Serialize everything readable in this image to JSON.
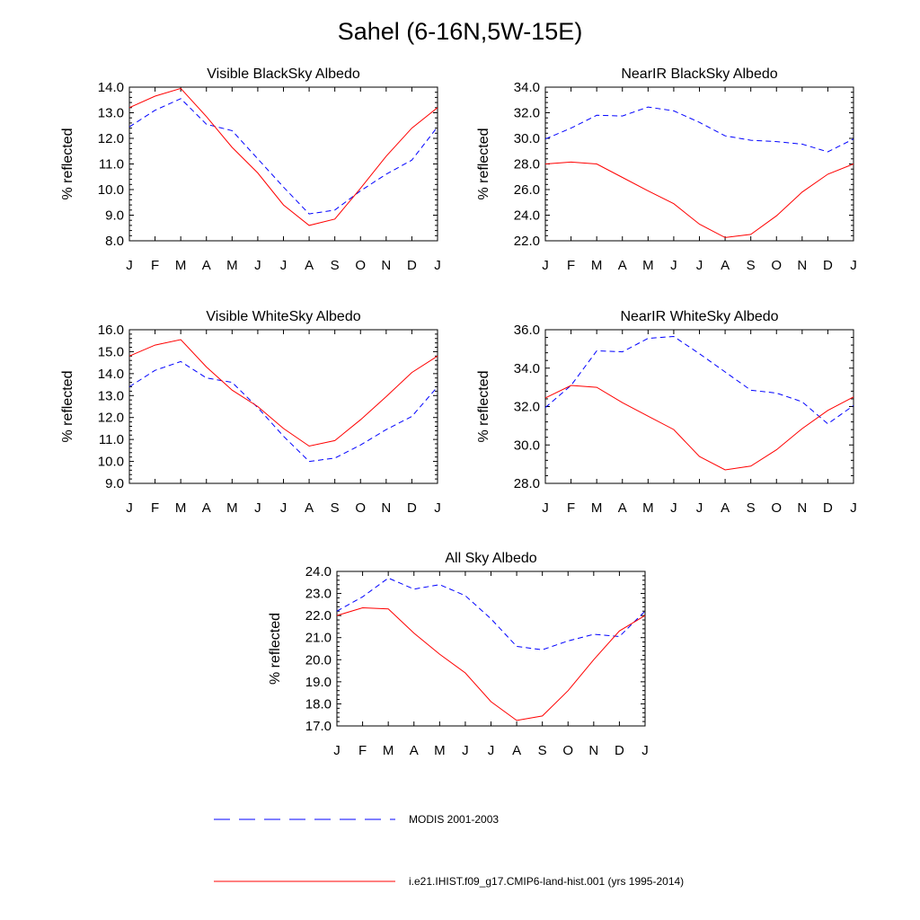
{
  "page_title": "Sahel (6-16N,5W-15E)",
  "series_styles": {
    "MODIS 2001-2003": {
      "color": "#0000ff",
      "dashed": true
    },
    "i.e21.IHIST.f09_g17.CMIP6-land-hist.001 (yrs 1995-2014)": {
      "color": "#ff0000",
      "dashed": false
    }
  },
  "legend": {
    "entries": [
      {
        "label": "MODIS 2001-2003",
        "color": "#0000ff",
        "dashed": true
      },
      {
        "label": "i.e21.IHIST.f09_g17.CMIP6-land-hist.001 (yrs 1995-2014)",
        "color": "#ff0000",
        "dashed": false
      }
    ]
  },
  "chart_data": [
    {
      "type": "line",
      "title": "Visible BlackSky Albedo",
      "ylabel": "% reflected",
      "xlabel": "",
      "categories": [
        "J",
        "F",
        "M",
        "A",
        "M",
        "J",
        "J",
        "A",
        "S",
        "O",
        "N",
        "D",
        "J"
      ],
      "ylim": [
        8.0,
        14.0
      ],
      "yticks": [
        "8.0",
        "9.0",
        "10.0",
        "11.0",
        "12.0",
        "13.0",
        "14.0"
      ],
      "series": [
        {
          "name": "MODIS 2001-2003",
          "values": [
            12.45,
            13.1,
            13.55,
            12.55,
            12.3,
            11.2,
            10.1,
            9.05,
            9.2,
            9.95,
            10.6,
            11.15,
            12.45
          ]
        },
        {
          "name": "i.e21.IHIST.f09_g17.CMIP6-land-hist.001 (yrs 1995-2014)",
          "values": [
            13.2,
            13.65,
            13.95,
            12.85,
            11.65,
            10.65,
            9.4,
            8.6,
            8.85,
            10.05,
            11.3,
            12.4,
            13.2
          ]
        }
      ]
    },
    {
      "type": "line",
      "title": "NearIR BlackSky Albedo",
      "ylabel": "% reflected",
      "xlabel": "",
      "categories": [
        "J",
        "F",
        "M",
        "A",
        "M",
        "J",
        "J",
        "A",
        "S",
        "O",
        "N",
        "D",
        "J"
      ],
      "ylim": [
        22.0,
        34.0
      ],
      "yticks": [
        "22.0",
        "24.0",
        "26.0",
        "28.0",
        "30.0",
        "32.0",
        "34.0"
      ],
      "series": [
        {
          "name": "MODIS 2001-2003",
          "values": [
            29.95,
            30.8,
            31.8,
            31.75,
            32.45,
            32.15,
            31.25,
            30.2,
            29.85,
            29.75,
            29.55,
            28.95,
            29.95
          ]
        },
        {
          "name": "i.e21.IHIST.f09_g17.CMIP6-land-hist.001 (yrs 1995-2014)",
          "values": [
            28.0,
            28.15,
            28.0,
            26.95,
            25.9,
            24.9,
            23.3,
            22.25,
            22.5,
            23.95,
            25.8,
            27.2,
            28.0
          ]
        }
      ]
    },
    {
      "type": "line",
      "title": "Visible WhiteSky Albedo",
      "ylabel": "% reflected",
      "xlabel": "",
      "categories": [
        "J",
        "F",
        "M",
        "A",
        "M",
        "J",
        "J",
        "A",
        "S",
        "O",
        "N",
        "D",
        "J"
      ],
      "ylim": [
        9.0,
        16.0
      ],
      "yticks": [
        "9.0",
        "10.0",
        "11.0",
        "12.0",
        "13.0",
        "14.0",
        "15.0",
        "16.0"
      ],
      "series": [
        {
          "name": "MODIS 2001-2003",
          "values": [
            13.4,
            14.15,
            14.55,
            13.8,
            13.6,
            12.45,
            11.15,
            10.0,
            10.15,
            10.75,
            11.45,
            12.05,
            13.4
          ]
        },
        {
          "name": "i.e21.IHIST.f09_g17.CMIP6-land-hist.001 (yrs 1995-2014)",
          "values": [
            14.8,
            15.3,
            15.55,
            14.3,
            13.25,
            12.5,
            11.5,
            10.7,
            10.95,
            11.9,
            12.95,
            14.05,
            14.8
          ]
        }
      ]
    },
    {
      "type": "line",
      "title": "NearIR WhiteSky Albedo",
      "ylabel": "% reflected",
      "xlabel": "",
      "categories": [
        "J",
        "F",
        "M",
        "A",
        "M",
        "J",
        "J",
        "A",
        "S",
        "O",
        "N",
        "D",
        "J"
      ],
      "ylim": [
        28.0,
        36.0
      ],
      "yticks": [
        "28.0",
        "30.0",
        "32.0",
        "34.0",
        "36.0"
      ],
      "series": [
        {
          "name": "MODIS 2001-2003",
          "values": [
            31.95,
            33.1,
            34.9,
            34.85,
            35.55,
            35.65,
            34.75,
            33.8,
            32.85,
            32.7,
            32.25,
            31.1,
            32.05
          ]
        },
        {
          "name": "i.e21.IHIST.f09_g17.CMIP6-land-hist.001 (yrs 1995-2014)",
          "values": [
            32.45,
            33.1,
            33.0,
            32.2,
            31.5,
            30.8,
            29.4,
            28.7,
            28.9,
            29.75,
            30.85,
            31.8,
            32.5
          ]
        }
      ]
    },
    {
      "type": "line",
      "title": "All Sky Albedo",
      "ylabel": "% reflected",
      "xlabel": "",
      "categories": [
        "J",
        "F",
        "M",
        "A",
        "M",
        "J",
        "J",
        "A",
        "S",
        "O",
        "N",
        "D",
        "J"
      ],
      "ylim": [
        17.0,
        24.0
      ],
      "yticks": [
        "17.0",
        "18.0",
        "19.0",
        "20.0",
        "21.0",
        "22.0",
        "23.0",
        "24.0"
      ],
      "series": [
        {
          "name": "MODIS 2001-2003",
          "values": [
            22.2,
            22.85,
            23.7,
            23.2,
            23.4,
            22.9,
            21.85,
            20.6,
            20.45,
            20.85,
            21.15,
            21.05,
            22.2
          ]
        },
        {
          "name": "i.e21.IHIST.f09_g17.CMIP6-land-hist.001 (yrs 1995-2014)",
          "values": [
            22.0,
            22.35,
            22.3,
            21.2,
            20.25,
            19.4,
            18.1,
            17.25,
            17.45,
            18.6,
            20.0,
            21.3,
            22.0
          ]
        }
      ]
    }
  ]
}
